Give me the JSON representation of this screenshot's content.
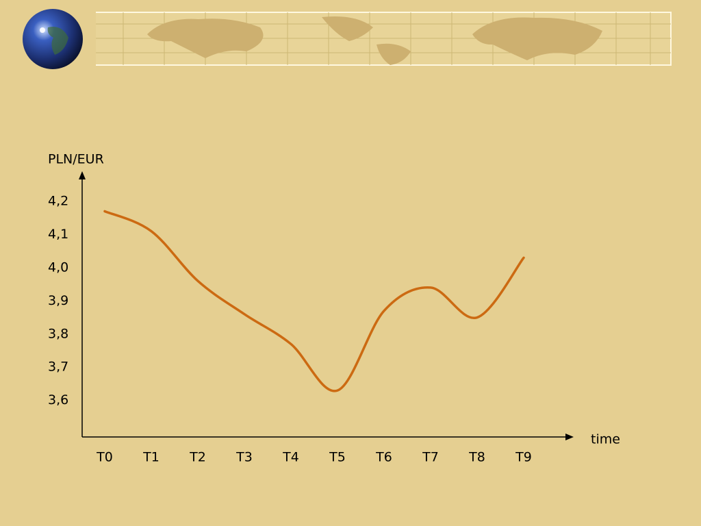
{
  "chart_data": {
    "type": "line",
    "y_label": "PLN/EUR",
    "x_label": "time",
    "categories": [
      "T0",
      "T1",
      "T2",
      "T3",
      "T4",
      "T5",
      "T6",
      "T7",
      "T8",
      "T9"
    ],
    "values": [
      4.17,
      4.11,
      3.96,
      3.86,
      3.77,
      3.63,
      3.87,
      3.94,
      3.85,
      4.03
    ],
    "color": "#cc6a12",
    "ylim": [
      3.49,
      4.27
    ],
    "yticks": [
      {
        "value": 4.2,
        "label": "4,2"
      },
      {
        "value": 4.1,
        "label": "4,1"
      },
      {
        "value": 4.0,
        "label": "4,0"
      },
      {
        "value": 3.9,
        "label": "3,9"
      },
      {
        "value": 3.8,
        "label": "3,8"
      },
      {
        "value": 3.7,
        "label": "3,7"
      },
      {
        "value": 3.6,
        "label": "3,6"
      }
    ],
    "grid": false
  }
}
